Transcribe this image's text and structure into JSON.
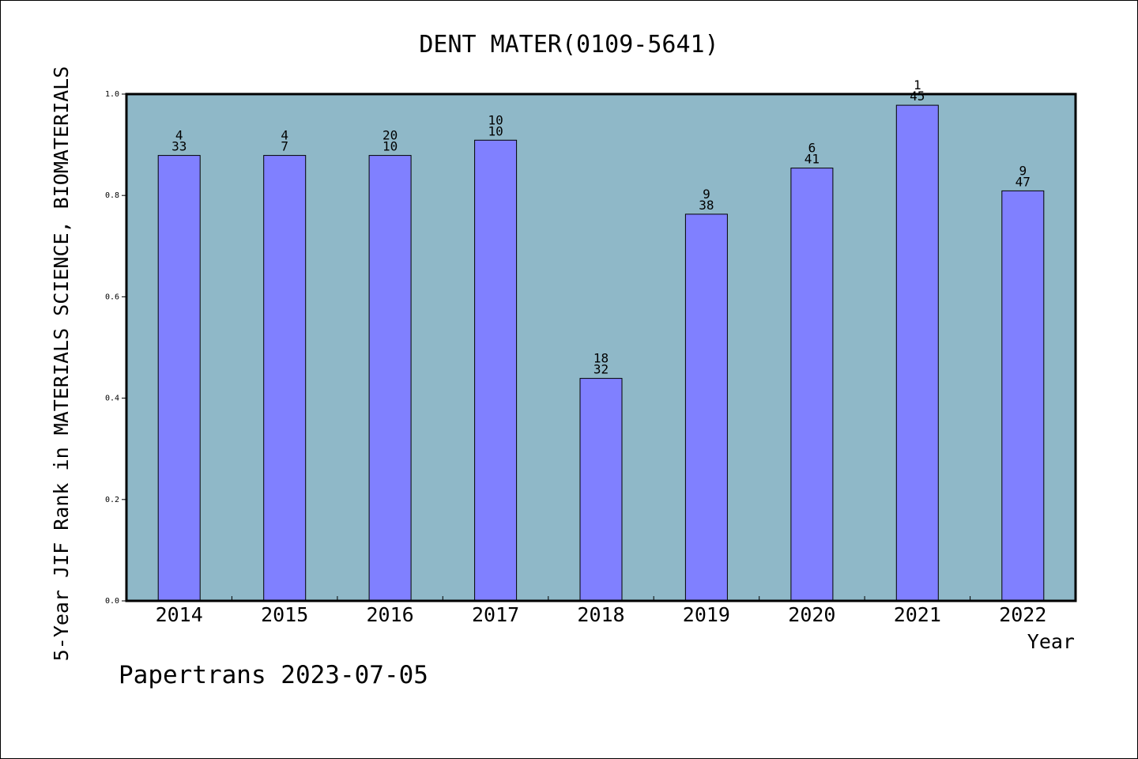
{
  "chart_data": {
    "type": "bar",
    "title": "DENT MATER(0109-5641)",
    "xlabel": "Year",
    "ylabel": "5-Year JIF Rank in MATERIALS SCIENCE, BIOMATERIALS",
    "footer": "Papertrans 2023-07-05",
    "categories": [
      "2014",
      "2015",
      "2016",
      "2017",
      "2018",
      "2019",
      "2020",
      "2021",
      "2022"
    ],
    "values": [
      0.879,
      0.879,
      0.879,
      0.909,
      0.439,
      0.763,
      0.854,
      0.978,
      0.809
    ],
    "labels": [
      [
        "4",
        "33"
      ],
      [
        "4",
        "7"
      ],
      [
        "20",
        "10"
      ],
      [
        "10",
        "10"
      ],
      [
        "18",
        "32"
      ],
      [
        "9",
        "38"
      ],
      [
        "6",
        "41"
      ],
      [
        "1",
        "45"
      ],
      [
        "9",
        "47"
      ]
    ],
    "ylim": [
      0,
      1.0
    ],
    "yticks": [
      "0.0",
      "0.2",
      "0.4",
      "0.6",
      "0.8",
      "1.0"
    ],
    "grid": false,
    "colors": {
      "plot_background": "#8fb8c8",
      "bar_fill": "#8080ff",
      "bar_stroke": "#000000"
    }
  }
}
